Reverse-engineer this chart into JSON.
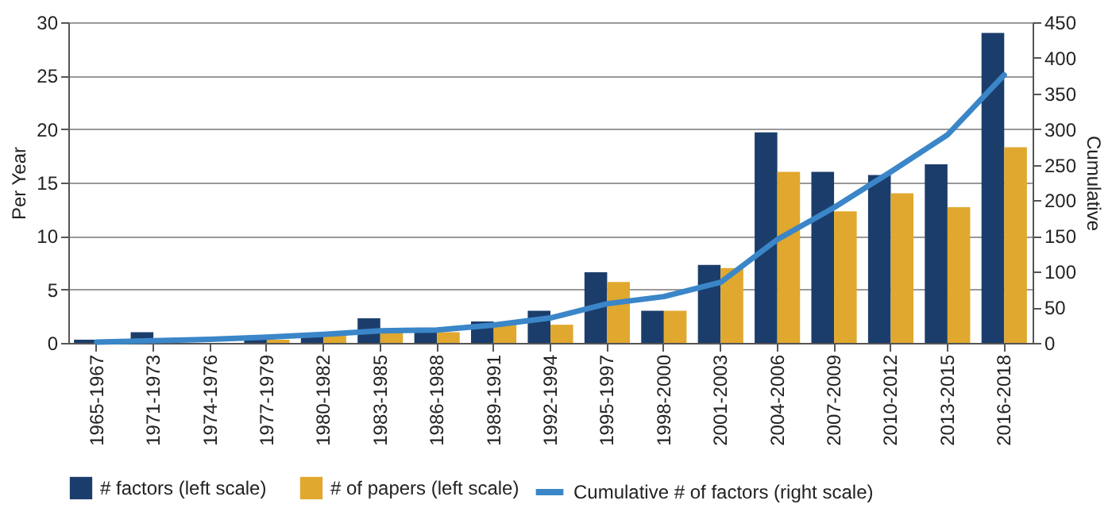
{
  "chart_data": {
    "type": "bar",
    "ylabel": "Per Year",
    "y2label": "Cumulative",
    "categories": [
      "1965-1967",
      "1971-1973",
      "1974-1976",
      "1977-1979",
      "1980-1982",
      "1983-1985",
      "1986-1988",
      "1989-1991",
      "1992-1994",
      "1995-1997",
      "1998-2000",
      "2001-2003",
      "2004-2006",
      "2007-2009",
      "2010-2012",
      "2013-2015",
      "2016-2018"
    ],
    "series": [
      {
        "name": "# factors (left scale)",
        "color": "#1b3d6b",
        "values": [
          0.3,
          1.0,
          null,
          0.3,
          0.7,
          2.3,
          1.0,
          2.0,
          3.0,
          6.6,
          3.0,
          7.3,
          19.7,
          16.0,
          15.7,
          16.7,
          29.0
        ]
      },
      {
        "name": "# of papers (left scale)",
        "color": "#e0a82e",
        "values": [
          null,
          null,
          null,
          0.3,
          0.7,
          1.0,
          1.0,
          1.7,
          1.7,
          5.7,
          3.0,
          7.0,
          16.0,
          12.3,
          14.0,
          12.7,
          18.3
        ]
      },
      {
        "name": "Cumulative # of factors (right scale)",
        "type": "line",
        "axis": "y2",
        "color": "#3a86c8",
        "values": [
          1,
          3,
          5,
          8,
          12,
          17,
          18,
          25,
          35,
          55,
          65,
          85,
          145,
          190,
          240,
          292,
          376
        ]
      }
    ],
    "ylim": [
      0,
      30
    ],
    "yticks": [
      0,
      5,
      10,
      15,
      20,
      25,
      30
    ],
    "y2lim": [
      0,
      450
    ],
    "y2ticks": [
      0,
      50,
      100,
      150,
      200,
      250,
      300,
      350,
      400,
      450
    ],
    "grid": "y",
    "legend": "bottom"
  }
}
